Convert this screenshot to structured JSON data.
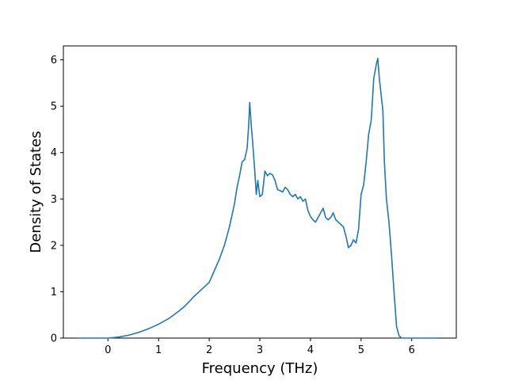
{
  "chart_data": {
    "type": "line",
    "title": "",
    "xlabel": "Frequency (THz)",
    "ylabel": "Density of States",
    "xlim": [
      -0.88,
      6.88
    ],
    "ylim": [
      0,
      6.3
    ],
    "xticks": [
      0,
      1,
      2,
      3,
      4,
      5,
      6
    ],
    "yticks": [
      0,
      1,
      2,
      3,
      4,
      5,
      6
    ],
    "grid": false,
    "legend": "none",
    "series": [
      {
        "color": "#1f77b4",
        "x": [
          -0.6,
          -0.3,
          0.0,
          0.2,
          0.4,
          0.6,
          0.8,
          1.0,
          1.2,
          1.3,
          1.4,
          1.5,
          1.6,
          1.7,
          1.8,
          1.9,
          2.0,
          2.1,
          2.2,
          2.3,
          2.4,
          2.5,
          2.55,
          2.6,
          2.65,
          2.7,
          2.75,
          2.78,
          2.8,
          2.83,
          2.86,
          2.9,
          2.93,
          2.96,
          3.0,
          3.05,
          3.1,
          3.15,
          3.2,
          3.25,
          3.3,
          3.35,
          3.4,
          3.45,
          3.5,
          3.55,
          3.6,
          3.65,
          3.7,
          3.75,
          3.8,
          3.85,
          3.9,
          3.95,
          4.0,
          4.05,
          4.1,
          4.15,
          4.2,
          4.25,
          4.3,
          4.35,
          4.4,
          4.45,
          4.5,
          4.55,
          4.6,
          4.65,
          4.7,
          4.75,
          4.8,
          4.85,
          4.9,
          4.95,
          5.0,
          5.05,
          5.1,
          5.15,
          5.2,
          5.25,
          5.3,
          5.33,
          5.36,
          5.4,
          5.43,
          5.46,
          5.5,
          5.55,
          5.6,
          5.65,
          5.7,
          5.75,
          5.8,
          5.85,
          5.9,
          5.95,
          6.0,
          6.1,
          6.3,
          6.5
        ],
        "y": [
          0.0,
          0.0,
          0.0,
          0.02,
          0.06,
          0.12,
          0.2,
          0.3,
          0.42,
          0.5,
          0.58,
          0.67,
          0.78,
          0.9,
          1.0,
          1.1,
          1.2,
          1.45,
          1.7,
          2.0,
          2.4,
          2.9,
          3.25,
          3.5,
          3.8,
          3.85,
          4.1,
          4.6,
          5.08,
          4.6,
          4.2,
          3.6,
          3.1,
          3.4,
          3.05,
          3.1,
          3.6,
          3.5,
          3.55,
          3.52,
          3.4,
          3.2,
          3.18,
          3.15,
          3.25,
          3.2,
          3.1,
          3.05,
          3.1,
          3.0,
          3.05,
          2.95,
          3.0,
          2.75,
          2.62,
          2.55,
          2.5,
          2.6,
          2.7,
          2.8,
          2.6,
          2.55,
          2.6,
          2.7,
          2.55,
          2.5,
          2.45,
          2.4,
          2.2,
          1.95,
          2.0,
          2.12,
          2.05,
          2.35,
          3.1,
          3.3,
          3.8,
          4.4,
          4.7,
          5.6,
          5.9,
          6.03,
          5.6,
          5.2,
          4.9,
          3.8,
          3.0,
          2.5,
          1.8,
          1.0,
          0.25,
          0.05,
          0.0,
          0.0,
          0.0,
          0.0,
          0.0,
          0.0,
          0.0,
          0.0
        ]
      }
    ]
  }
}
